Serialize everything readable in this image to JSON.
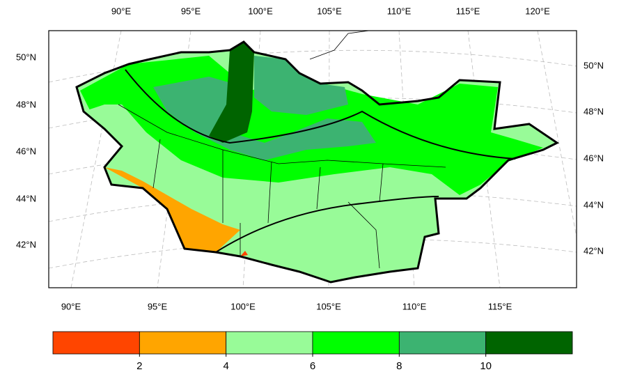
{
  "map": {
    "top_lon_labels": [
      "90°E",
      "95°E",
      "100°E",
      "105°E",
      "110°E",
      "115°E",
      "120°E"
    ],
    "bottom_lon_labels": [
      "90°E",
      "95°E",
      "100°E",
      "105°E",
      "110°E",
      "115°E"
    ],
    "left_lat_labels": [
      "50°N",
      "48°N",
      "46°N",
      "44°N",
      "42°N"
    ],
    "right_lat_labels": [
      "50°N",
      "48°N",
      "46°N",
      "44°N",
      "42°N"
    ]
  },
  "colorbar": {
    "colors": [
      "#ff4500",
      "#ffa500",
      "#98fb98",
      "#00ff00",
      "#3cb371",
      "#006400"
    ],
    "ticks": [
      2,
      4,
      6,
      8,
      10
    ]
  }
}
